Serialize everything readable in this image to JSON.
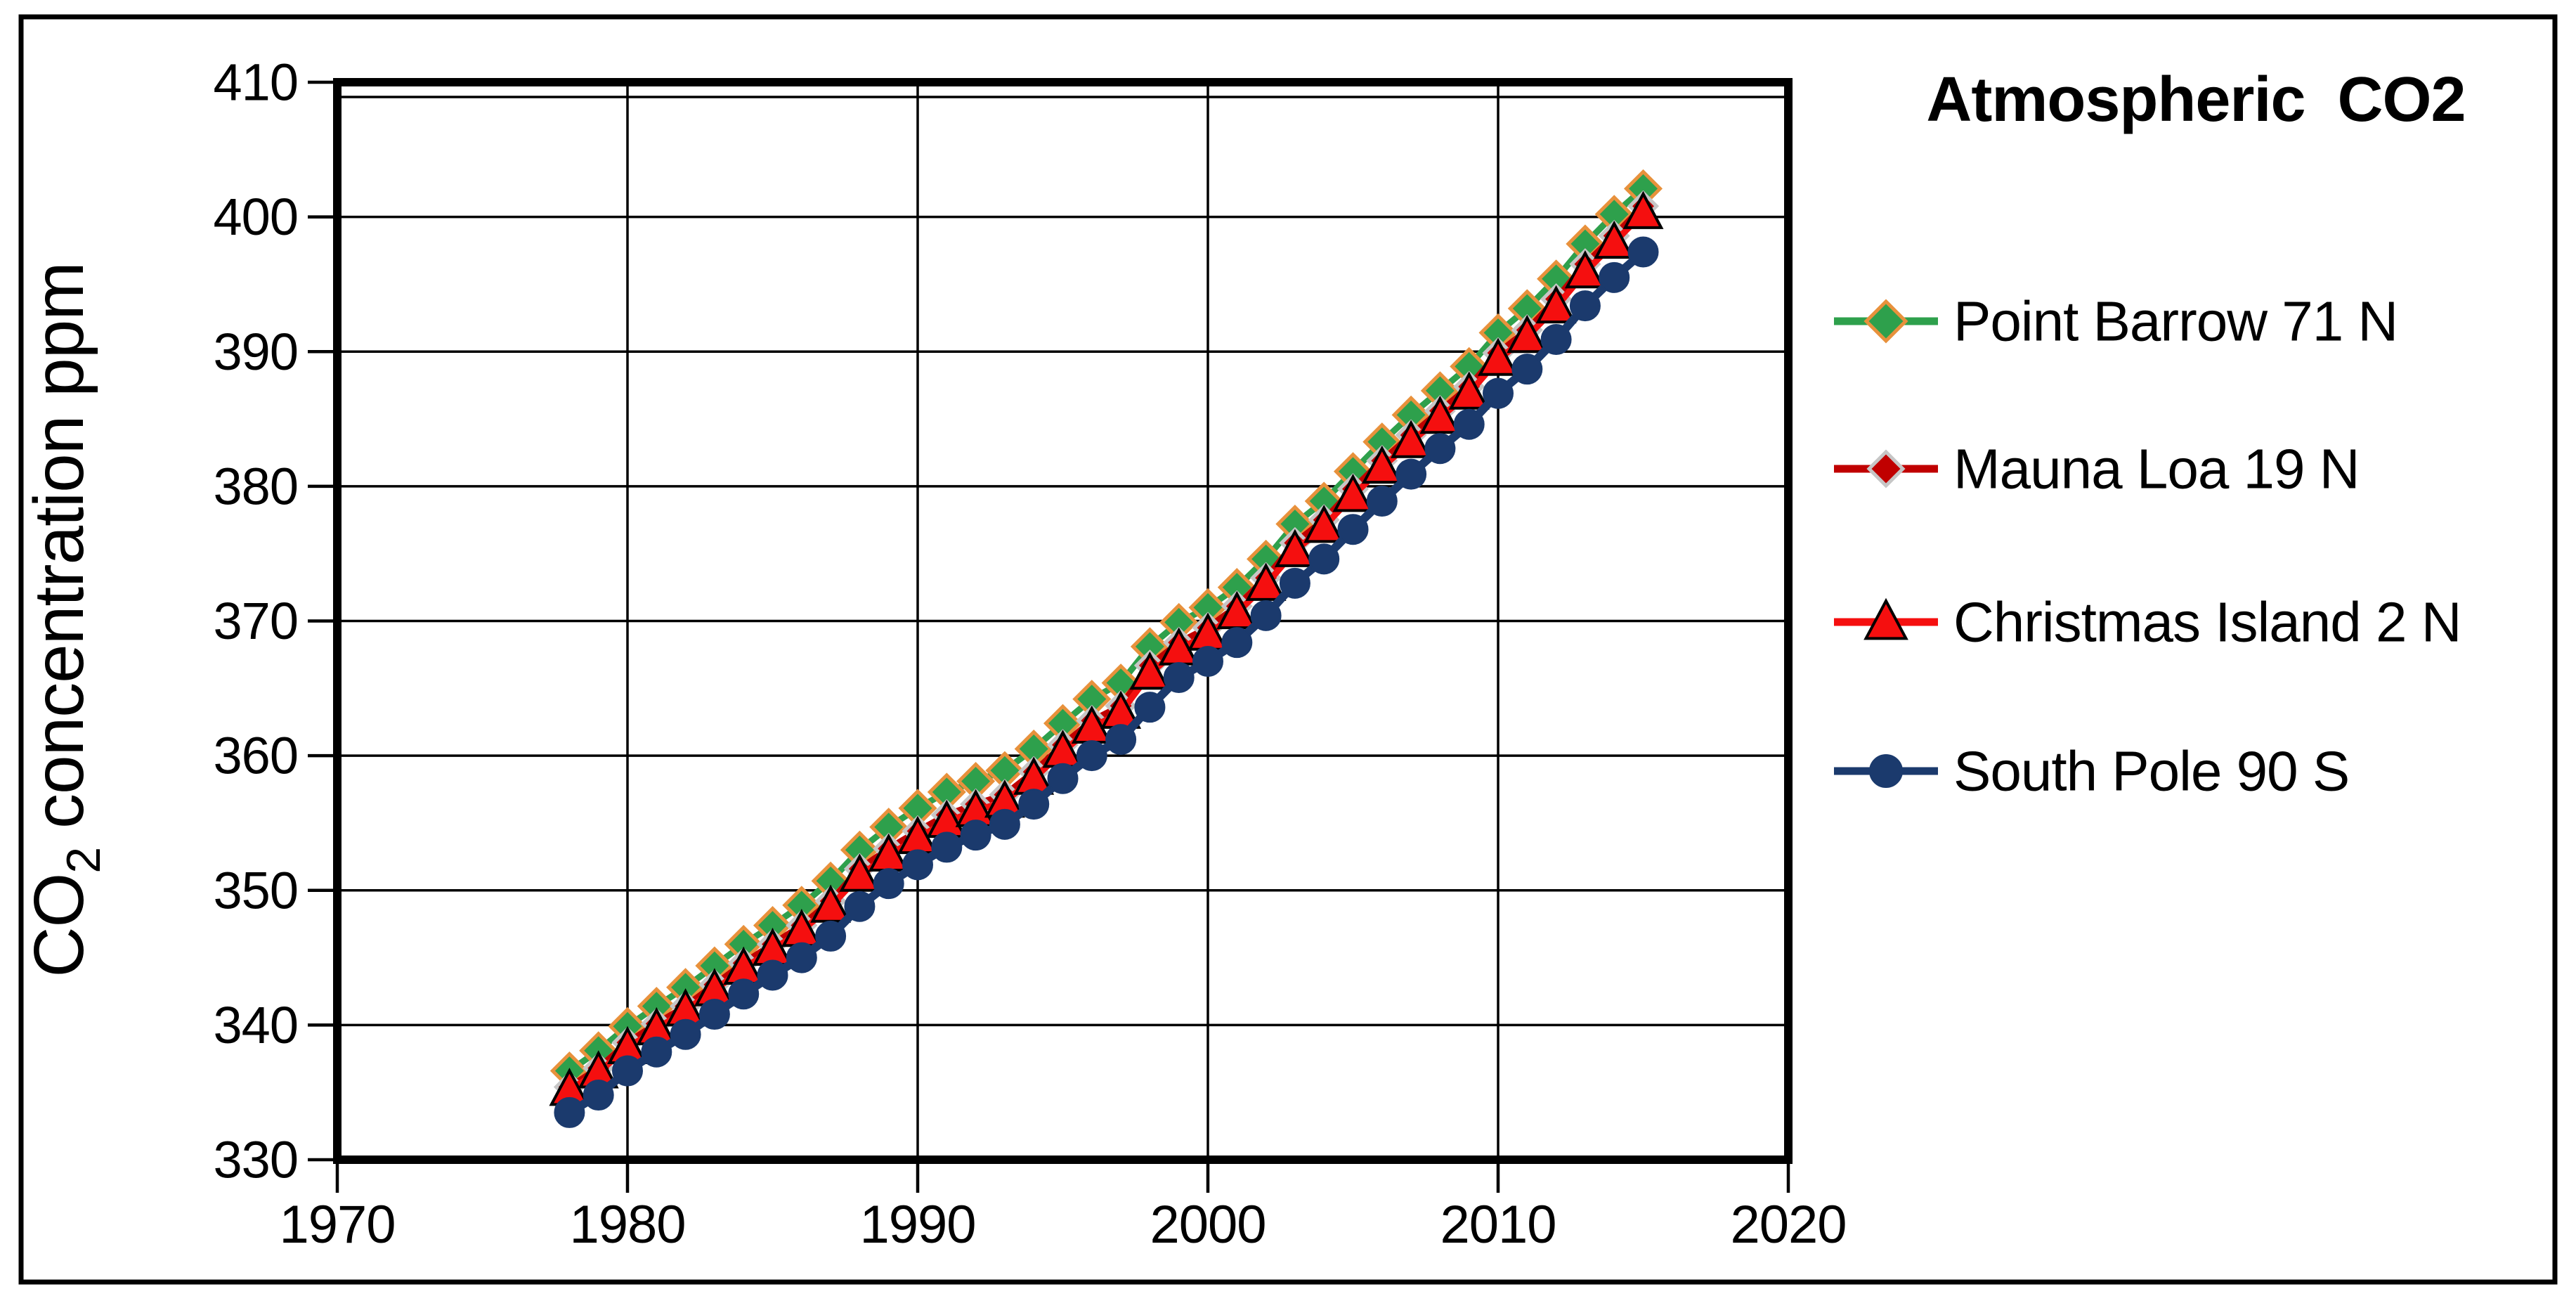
{
  "figure": {
    "border_color": "#000000",
    "background": "#ffffff"
  },
  "y_axis": {
    "label_main": "CO",
    "label_sub": "2",
    "label_rest": " concentration ppm",
    "ticks": [
      330,
      340,
      350,
      360,
      370,
      380,
      390,
      400,
      410
    ]
  },
  "x_axis": {
    "ticks": [
      1970,
      1980,
      1990,
      2000,
      2010,
      2020
    ]
  },
  "chart_data": {
    "type": "line",
    "title": "Atmospheric CO2",
    "xlabel": "",
    "ylabel": "CO2 concentration ppm",
    "xlim": [
      1970,
      2020
    ],
    "ylim": [
      330,
      410
    ],
    "x_ticks": [
      1970,
      1980,
      1990,
      2000,
      2010,
      2020
    ],
    "y_ticks": [
      330,
      340,
      350,
      360,
      370,
      380,
      390,
      400,
      410
    ],
    "grid": "both",
    "legend_position": "right",
    "x": [
      1978,
      1979,
      1980,
      1981,
      1982,
      1983,
      1984,
      1985,
      1986,
      1987,
      1988,
      1989,
      1990,
      1991,
      1992,
      1993,
      1994,
      1995,
      1996,
      1997,
      1998,
      1999,
      2000,
      2001,
      2002,
      2003,
      2004,
      2005,
      2006,
      2007,
      2008,
      2009,
      2010,
      2011,
      2012,
      2013,
      2014,
      2015
    ],
    "series": [
      {
        "name": "Point Barrow 71 N",
        "color": "#2EA04C",
        "marker": "diamond",
        "marker_stroke": "#E8913C",
        "values": [
          336.6,
          338.1,
          339.9,
          341.4,
          342.8,
          344.4,
          346.0,
          347.4,
          348.9,
          350.7,
          353.0,
          354.7,
          356.1,
          357.3,
          358.1,
          358.9,
          360.5,
          362.4,
          364.2,
          365.4,
          368.1,
          369.9,
          371.0,
          372.5,
          374.6,
          377.2,
          378.9,
          381.1,
          383.3,
          385.3,
          387.1,
          388.9,
          391.4,
          393.2,
          395.4,
          398.0,
          400.2,
          402.1
        ]
      },
      {
        "name": "Mauna Loa 19 N",
        "color": "#C00000",
        "marker": "diamond",
        "marker_stroke": "#C6C6C6",
        "values": [
          335.4,
          336.8,
          338.7,
          340.1,
          341.4,
          343.0,
          344.6,
          346.0,
          347.4,
          349.2,
          351.6,
          353.1,
          354.4,
          355.6,
          356.4,
          357.1,
          358.8,
          360.8,
          362.6,
          363.7,
          366.7,
          368.4,
          369.5,
          371.1,
          373.2,
          375.8,
          377.5,
          379.8,
          381.9,
          383.8,
          385.6,
          387.4,
          389.9,
          391.6,
          393.9,
          396.5,
          398.6,
          400.8
        ]
      },
      {
        "name": "Christmas Island 2 N",
        "color": "#F50F0F",
        "marker": "triangle",
        "marker_stroke": "#000000",
        "values": [
          335.2,
          336.5,
          338.3,
          339.7,
          341.1,
          342.6,
          344.2,
          345.6,
          347.0,
          348.8,
          351.1,
          352.6,
          353.9,
          355.1,
          355.9,
          356.6,
          358.3,
          360.3,
          362.1,
          363.2,
          366.1,
          367.9,
          369.0,
          370.6,
          372.7,
          375.2,
          377.0,
          379.3,
          381.4,
          383.3,
          385.1,
          386.9,
          389.4,
          391.1,
          393.3,
          395.9,
          398.1,
          400.3
        ]
      },
      {
        "name": "South Pole 90 S",
        "color": "#1B3A6D",
        "marker": "circle",
        "marker_stroke": "#1B3A6D",
        "values": [
          333.5,
          334.8,
          336.6,
          338.0,
          339.3,
          340.8,
          342.3,
          343.7,
          345.0,
          346.6,
          348.8,
          350.5,
          351.9,
          353.2,
          354.1,
          354.9,
          356.4,
          358.3,
          360.0,
          361.2,
          363.6,
          365.8,
          367.0,
          368.4,
          370.4,
          372.8,
          374.6,
          376.8,
          378.9,
          380.9,
          382.8,
          384.6,
          386.9,
          388.7,
          390.9,
          393.4,
          395.5,
          397.4
        ]
      }
    ]
  }
}
